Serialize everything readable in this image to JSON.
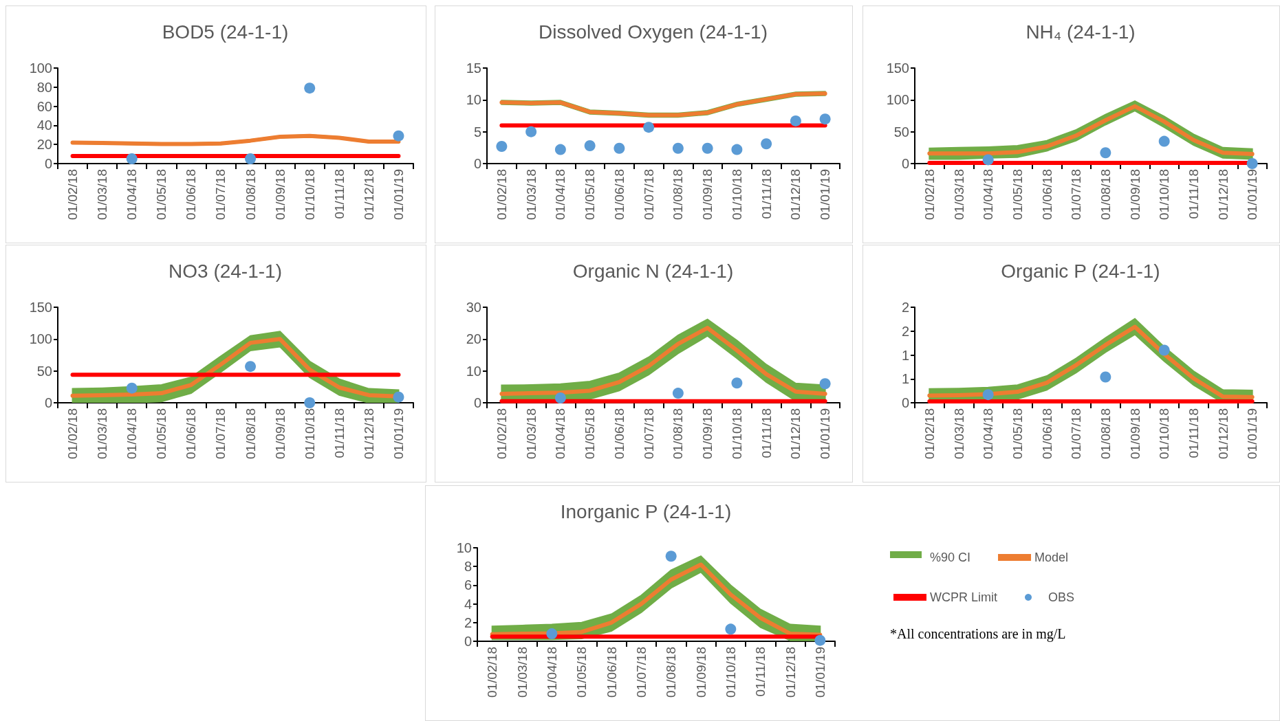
{
  "chart_data": [
    {
      "type": "line",
      "title": "BOD5 (24-1-1)",
      "categories": [
        "01/02/18",
        "01/03/18",
        "01/04/18",
        "01/05/18",
        "01/06/18",
        "01/07/18",
        "01/08/18",
        "01/09/18",
        "01/10/18",
        "01/11/18",
        "01/12/18",
        "01/01/19"
      ],
      "ylim": [
        0,
        100
      ],
      "yticks": [
        0,
        20,
        40,
        60,
        80,
        100
      ],
      "series": [
        {
          "type": "line",
          "color": "#ed7d31",
          "values": [
            22,
            21.5,
            21,
            20.5,
            20.5,
            21,
            24,
            28,
            29,
            27,
            23,
            23
          ],
          "lower": [
            21,
            20.5,
            20,
            19.5,
            19.5,
            20,
            23,
            27,
            28,
            26,
            22,
            22
          ],
          "upper": [
            23,
            22.5,
            22,
            21.5,
            21.5,
            22,
            25,
            29,
            30,
            28,
            24,
            24
          ]
        },
        {
          "type": "line",
          "color": "#ff0000",
          "values": [
            8,
            8,
            8,
            8,
            8,
            8,
            8,
            8,
            8,
            8,
            8,
            8
          ]
        },
        {
          "type": "scatter",
          "color": "#5b9bd5",
          "marker": "circle",
          "values": [
            null,
            null,
            5,
            null,
            null,
            null,
            5,
            null,
            79,
            null,
            null,
            29
          ]
        }
      ]
    },
    {
      "type": "line",
      "title": "Dissolved Oxygen (24-1-1)",
      "categories": [
        "01/02/18",
        "01/03/18",
        "01/04/18",
        "01/05/18",
        "01/06/18",
        "01/07/18",
        "01/08/18",
        "01/09/18",
        "01/10/18",
        "01/11/18",
        "01/12/18",
        "01/01/19"
      ],
      "ylim": [
        0,
        15
      ],
      "yticks": [
        0,
        5,
        10,
        15
      ],
      "series": [
        {
          "type": "line",
          "color": "#ed7d31",
          "values": [
            9.6,
            9.5,
            9.6,
            8.1,
            7.9,
            7.6,
            7.6,
            8.0,
            9.3,
            10.1,
            10.9,
            11.0
          ],
          "lower": [
            9.3,
            9.2,
            9.3,
            7.8,
            7.6,
            7.3,
            7.3,
            7.7,
            9.0,
            9.8,
            10.6,
            10.7
          ],
          "upper": [
            9.9,
            9.8,
            9.9,
            8.4,
            8.2,
            7.9,
            7.9,
            8.3,
            9.6,
            10.4,
            11.2,
            11.3
          ]
        },
        {
          "type": "line",
          "color": "#ff0000",
          "values": [
            6,
            6,
            6,
            6,
            6,
            6,
            6,
            6,
            6,
            6,
            6,
            6
          ]
        },
        {
          "type": "scatter",
          "color": "#5b9bd5",
          "marker": "circle",
          "values": [
            2.7,
            5.0,
            2.2,
            2.8,
            2.4,
            5.7,
            2.4,
            2.4,
            2.2,
            3.1,
            6.7,
            7.0
          ]
        }
      ]
    },
    {
      "type": "line",
      "title": "NH₄ (24-1-1)",
      "categories": [
        "01/02/18",
        "01/03/18",
        "01/04/18",
        "01/05/18",
        "01/06/18",
        "01/07/18",
        "01/08/18",
        "01/09/18",
        "01/10/18",
        "01/11/18",
        "01/12/18",
        "01/01/19"
      ],
      "ylim": [
        0,
        150
      ],
      "yticks": [
        0,
        50,
        100,
        150
      ],
      "series": [
        {
          "type": "line",
          "color": "#ed7d31",
          "values": [
            16,
            16,
            16,
            18,
            27,
            44,
            68,
            90,
            66,
            37,
            17,
            15
          ],
          "lower": [
            7,
            7,
            9,
            10,
            20,
            36,
            61,
            83,
            57,
            29,
            9,
            7
          ],
          "upper": [
            24,
            25,
            26,
            28,
            36,
            53,
            77,
            98,
            74,
            46,
            25,
            23
          ]
        },
        {
          "type": "line",
          "color": "#ff0000",
          "values": [
            1,
            1,
            1,
            1,
            1,
            1,
            1,
            1,
            1,
            1,
            1,
            1
          ]
        },
        {
          "type": "scatter",
          "color": "#5b9bd5",
          "marker": "circle",
          "values": [
            null,
            null,
            6,
            null,
            null,
            null,
            17,
            null,
            35,
            null,
            null,
            0
          ]
        }
      ]
    },
    {
      "type": "line",
      "title": "NO3 (24-1-1)",
      "categories": [
        "01/02/18",
        "01/03/18",
        "01/04/18",
        "01/05/18",
        "01/06/18",
        "01/07/18",
        "01/08/18",
        "01/09/18",
        "01/10/18",
        "01/11/18",
        "01/12/18",
        "01/01/19"
      ],
      "ylim": [
        0,
        150
      ],
      "yticks": [
        0,
        50,
        100,
        150
      ],
      "series": [
        {
          "type": "line",
          "color": "#ed7d31",
          "values": [
            11,
            12,
            13,
            15,
            28,
            60,
            94,
            100,
            52,
            24,
            12,
            10
          ],
          "lower": [
            0,
            0,
            0,
            2,
            15,
            48,
            82,
            88,
            40,
            12,
            0,
            0
          ],
          "upper": [
            22,
            23,
            25,
            28,
            40,
            73,
            105,
            112,
            65,
            37,
            22,
            20
          ]
        },
        {
          "type": "line",
          "color": "#ff0000",
          "values": [
            44,
            44,
            44,
            44,
            44,
            44,
            44,
            44,
            44,
            44,
            44,
            44
          ]
        },
        {
          "type": "scatter",
          "color": "#5b9bd5",
          "marker": "circle",
          "values": [
            null,
            null,
            23,
            null,
            null,
            null,
            57,
            null,
            0,
            null,
            null,
            9
          ]
        }
      ]
    },
    {
      "type": "line",
      "title": "Organic N (24-1-1)",
      "categories": [
        "01/02/18",
        "01/03/18",
        "01/04/18",
        "01/05/18",
        "01/06/18",
        "01/07/18",
        "01/08/18",
        "01/09/18",
        "01/10/18",
        "01/11/18",
        "01/12/18",
        "01/01/19"
      ],
      "ylim": [
        0,
        30
      ],
      "yticks": [
        0,
        10,
        20,
        30
      ],
      "series": [
        {
          "type": "line",
          "color": "#ed7d31",
          "values": [
            2.8,
            3,
            3.2,
            3.8,
            6.5,
            11.5,
            18.5,
            23.5,
            16.5,
            9,
            3.5,
            2.8
          ],
          "lower": [
            0.5,
            0.5,
            0.8,
            1.2,
            3.8,
            8.8,
            15.5,
            21,
            14,
            6.5,
            0.6,
            0.5
          ],
          "upper": [
            5.5,
            5.6,
            5.9,
            6.7,
            9.3,
            14.3,
            21.2,
            26.2,
            19.6,
            12,
            6.1,
            5.5
          ]
        },
        {
          "type": "line",
          "color": "#ff0000",
          "values": [
            0.5,
            0.5,
            0.5,
            0.5,
            0.5,
            0.5,
            0.5,
            0.5,
            0.5,
            0.5,
            0.5,
            0.5
          ]
        },
        {
          "type": "scatter",
          "color": "#5b9bd5",
          "marker": "circle",
          "values": [
            null,
            null,
            1.5,
            null,
            null,
            null,
            3.0,
            null,
            6.2,
            null,
            null,
            6.0
          ]
        }
      ]
    },
    {
      "type": "line",
      "title": "Organic P (24-1-1)",
      "categories": [
        "01/02/18",
        "01/03/18",
        "01/04/18",
        "01/05/18",
        "01/06/18",
        "01/07/18",
        "01/08/18",
        "01/09/18",
        "01/10/18",
        "01/11/18",
        "01/12/18",
        "01/01/19"
      ],
      "ylim": [
        0,
        2
      ],
      "yticks": [
        0,
        {
          "value": 0.5,
          "label": "1"
        },
        1,
        {
          "value": 1.5,
          "label": "2"
        },
        2
      ],
      "series": [
        {
          "type": "line",
          "color": "#ed7d31",
          "values": [
            0.15,
            0.16,
            0.18,
            0.23,
            0.42,
            0.79,
            1.21,
            1.59,
            1.02,
            0.51,
            0.13,
            0.12
          ],
          "lower": [
            0,
            0,
            0.03,
            0.08,
            0.27,
            0.63,
            1.06,
            1.43,
            0.87,
            0.37,
            0,
            0
          ],
          "upper": [
            0.29,
            0.3,
            0.32,
            0.37,
            0.56,
            0.93,
            1.36,
            1.76,
            1.17,
            0.66,
            0.27,
            0.26
          ]
        },
        {
          "type": "line",
          "color": "#ff0000",
          "values": [
            0.03,
            0.03,
            0.03,
            0.03,
            0.03,
            0.03,
            0.03,
            0.03,
            0.03,
            0.03,
            0.03,
            0.03
          ]
        },
        {
          "type": "scatter",
          "color": "#5b9bd5",
          "marker": "circle",
          "values": [
            null,
            null,
            0.17,
            null,
            null,
            null,
            0.54,
            null,
            1.1,
            null,
            null,
            null
          ]
        }
      ]
    },
    {
      "type": "line",
      "title": "Inorganic P (24-1-1)",
      "categories": [
        "01/02/18",
        "01/03/18",
        "01/04/18",
        "01/05/18",
        "01/06/18",
        "01/07/18",
        "01/08/18",
        "01/09/18",
        "01/10/18",
        "01/11/18",
        "01/12/18",
        "01/01/19"
      ],
      "ylim": [
        0,
        10
      ],
      "yticks": [
        0,
        2,
        4,
        6,
        8,
        10
      ],
      "legend": "right",
      "legend_title": "%90 CI",
      "annotations": [
        "*All concentrations are in mg/L"
      ],
      "series": [
        {
          "name": "Model",
          "type": "line",
          "color": "#ed7d31",
          "values": [
            0.75,
            0.8,
            0.85,
            1.0,
            2.0,
            4.0,
            6.6,
            8.2,
            5.0,
            2.5,
            0.8,
            0.7
          ],
          "lower": [
            0.2,
            0.2,
            0.2,
            0.3,
            1.1,
            3.1,
            5.7,
            7.4,
            4.1,
            1.5,
            0.1,
            0.1
          ],
          "upper": [
            1.6,
            1.7,
            1.8,
            2.0,
            2.9,
            4.9,
            7.6,
            9.1,
            6.0,
            3.4,
            1.8,
            1.6
          ]
        },
        {
          "name": "WCPR Limit",
          "type": "line",
          "color": "#ff0000",
          "values": [
            0.5,
            0.5,
            0.5,
            0.5,
            0.5,
            0.5,
            0.5,
            0.5,
            0.5,
            0.5,
            0.5,
            0.5
          ]
        },
        {
          "name": "OBS",
          "type": "scatter",
          "color": "#5b9bd5",
          "marker": "circle",
          "values": [
            null,
            null,
            0.8,
            null,
            null,
            null,
            9.1,
            null,
            1.3,
            null,
            null,
            0.1
          ]
        }
      ]
    }
  ]
}
